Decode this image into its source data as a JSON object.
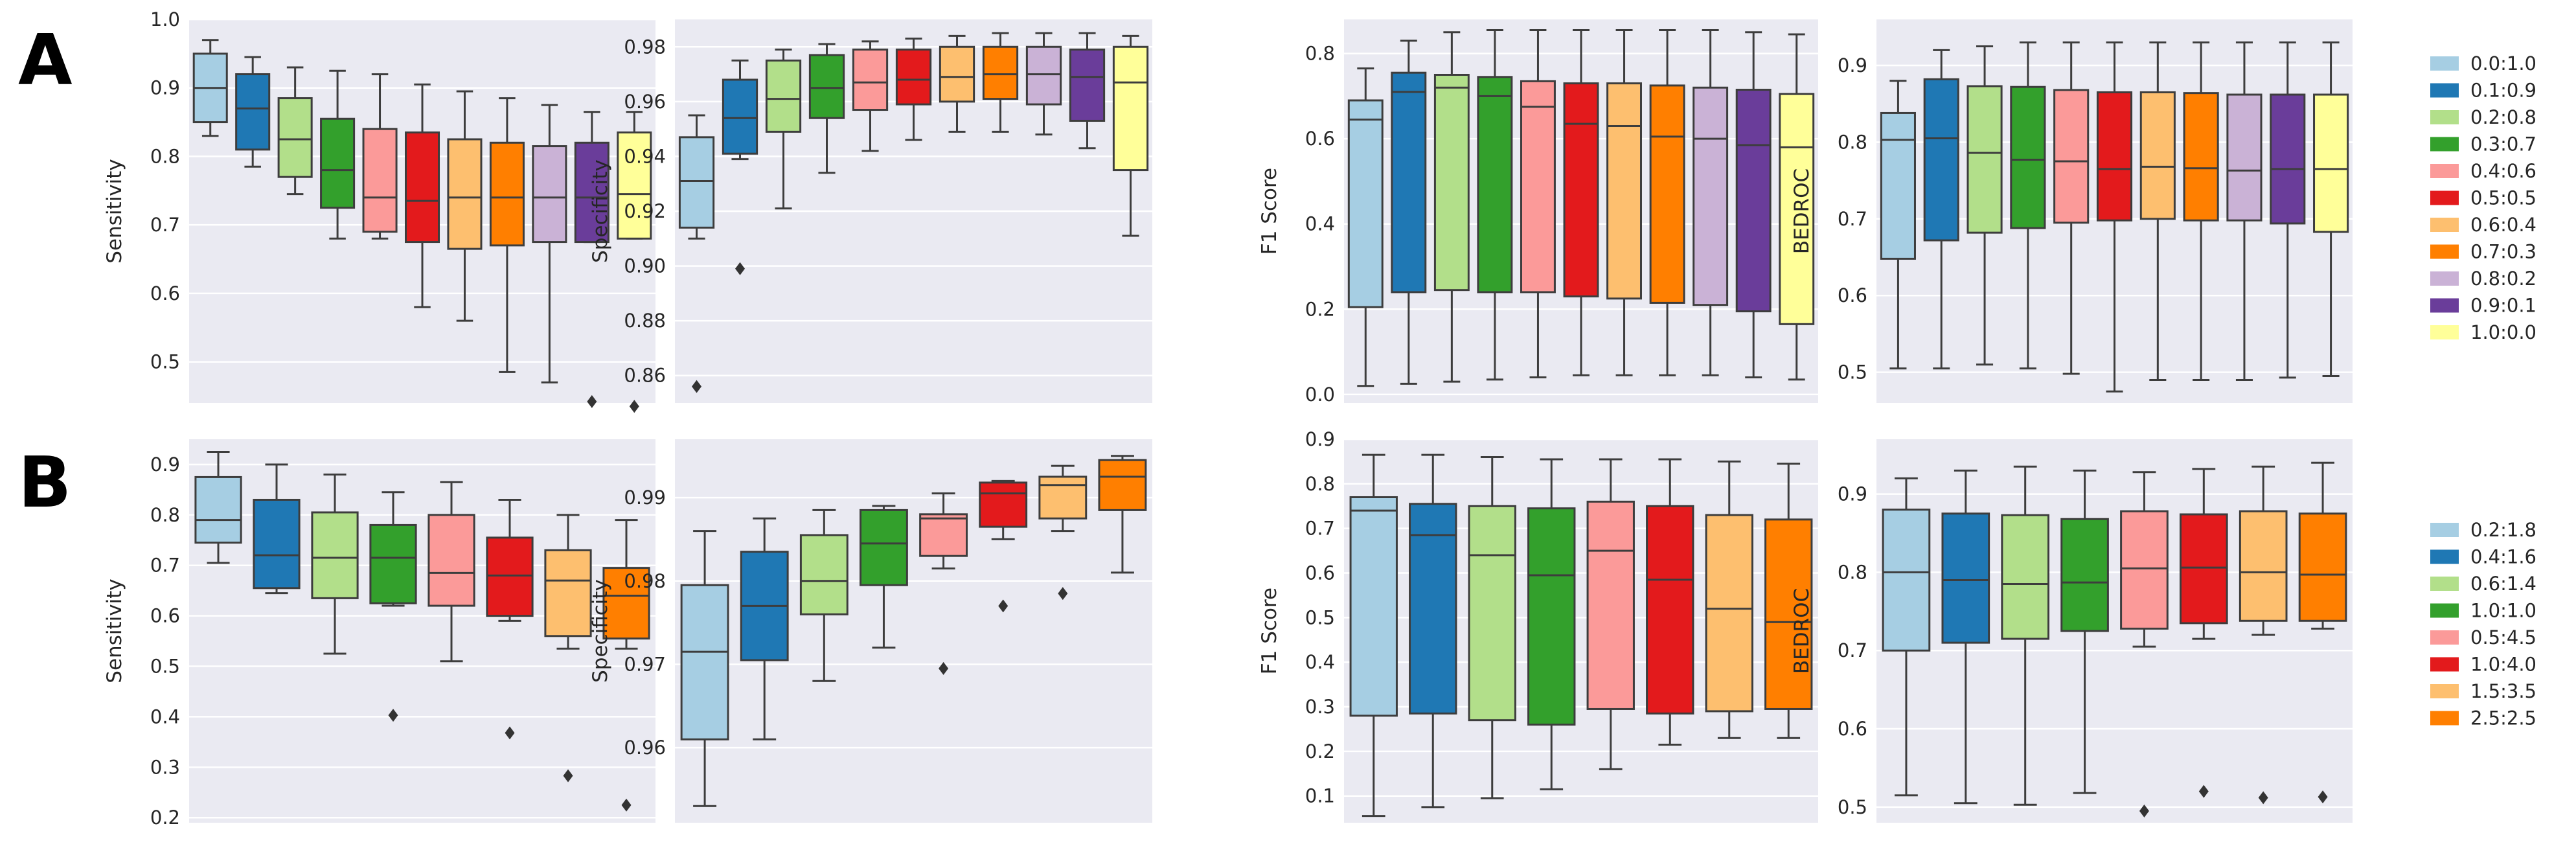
{
  "figure": {
    "panel_labels": [
      "A",
      "B"
    ]
  },
  "chart_data": [
    {
      "panel": "A",
      "type": "box",
      "ylabel": "Sensitivity",
      "ylim": [
        0.44,
        1.0
      ],
      "yticks": [
        0.5,
        0.6,
        0.7,
        0.8,
        0.9,
        1.0
      ],
      "ytick_labels": [
        "0.5",
        "0.6",
        "0.7",
        "0.8",
        "0.9",
        "1.0"
      ],
      "boxes": [
        {
          "min": 0.83,
          "q1": 0.85,
          "median": 0.9,
          "q3": 0.95,
          "max": 0.97,
          "outliers": []
        },
        {
          "min": 0.785,
          "q1": 0.81,
          "median": 0.87,
          "q3": 0.92,
          "max": 0.945,
          "outliers": []
        },
        {
          "min": 0.745,
          "q1": 0.77,
          "median": 0.825,
          "q3": 0.885,
          "max": 0.93,
          "outliers": []
        },
        {
          "min": 0.68,
          "q1": 0.725,
          "median": 0.78,
          "q3": 0.855,
          "max": 0.925,
          "outliers": []
        },
        {
          "min": 0.68,
          "q1": 0.69,
          "median": 0.74,
          "q3": 0.84,
          "max": 0.92,
          "outliers": []
        },
        {
          "min": 0.58,
          "q1": 0.675,
          "median": 0.735,
          "q3": 0.835,
          "max": 0.905,
          "outliers": []
        },
        {
          "min": 0.56,
          "q1": 0.665,
          "median": 0.74,
          "q3": 0.825,
          "max": 0.895,
          "outliers": []
        },
        {
          "min": 0.485,
          "q1": 0.67,
          "median": 0.74,
          "q3": 0.82,
          "max": 0.885,
          "outliers": []
        },
        {
          "min": 0.47,
          "q1": 0.675,
          "median": 0.74,
          "q3": 0.815,
          "max": 0.875,
          "outliers": []
        },
        {
          "min": 0.675,
          "q1": 0.675,
          "median": 0.74,
          "q3": 0.82,
          "max": 0.865,
          "outliers": [
            0.442
          ]
        },
        {
          "min": 0.68,
          "q1": 0.68,
          "median": 0.745,
          "q3": 0.835,
          "max": 0.865,
          "outliers": [
            0.435
          ]
        }
      ]
    },
    {
      "panel": "A",
      "type": "box",
      "ylabel": "Specificity",
      "ylim": [
        0.85,
        0.99
      ],
      "yticks": [
        0.86,
        0.88,
        0.9,
        0.92,
        0.94,
        0.96,
        0.98
      ],
      "ytick_labels": [
        "0.86",
        "0.88",
        "0.90",
        "0.92",
        "0.94",
        "0.96",
        "0.98"
      ],
      "boxes": [
        {
          "min": 0.91,
          "q1": 0.914,
          "median": 0.931,
          "q3": 0.947,
          "max": 0.955,
          "outliers": [
            0.856
          ]
        },
        {
          "min": 0.939,
          "q1": 0.941,
          "median": 0.954,
          "q3": 0.968,
          "max": 0.975,
          "outliers": [
            0.899
          ]
        },
        {
          "min": 0.921,
          "q1": 0.949,
          "median": 0.961,
          "q3": 0.975,
          "max": 0.979,
          "outliers": []
        },
        {
          "min": 0.934,
          "q1": 0.954,
          "median": 0.965,
          "q3": 0.977,
          "max": 0.981,
          "outliers": []
        },
        {
          "min": 0.942,
          "q1": 0.957,
          "median": 0.967,
          "q3": 0.979,
          "max": 0.982,
          "outliers": []
        },
        {
          "min": 0.946,
          "q1": 0.959,
          "median": 0.968,
          "q3": 0.979,
          "max": 0.983,
          "outliers": []
        },
        {
          "min": 0.949,
          "q1": 0.96,
          "median": 0.969,
          "q3": 0.98,
          "max": 0.984,
          "outliers": []
        },
        {
          "min": 0.949,
          "q1": 0.961,
          "median": 0.97,
          "q3": 0.98,
          "max": 0.985,
          "outliers": []
        },
        {
          "min": 0.948,
          "q1": 0.959,
          "median": 0.97,
          "q3": 0.98,
          "max": 0.985,
          "outliers": []
        },
        {
          "min": 0.943,
          "q1": 0.953,
          "median": 0.969,
          "q3": 0.979,
          "max": 0.985,
          "outliers": []
        },
        {
          "min": 0.911,
          "q1": 0.935,
          "median": 0.967,
          "q3": 0.98,
          "max": 0.984,
          "outliers": []
        }
      ]
    },
    {
      "panel": "A",
      "type": "box",
      "ylabel": "F1 Score",
      "ylim": [
        -0.02,
        0.88
      ],
      "yticks": [
        0.0,
        0.2,
        0.4,
        0.6,
        0.8
      ],
      "ytick_labels": [
        "0.0",
        "0.2",
        "0.4",
        "0.6",
        "0.8"
      ],
      "boxes": [
        {
          "min": 0.02,
          "q1": 0.205,
          "median": 0.645,
          "q3": 0.69,
          "max": 0.765,
          "outliers": []
        },
        {
          "min": 0.025,
          "q1": 0.24,
          "median": 0.71,
          "q3": 0.755,
          "max": 0.83,
          "outliers": []
        },
        {
          "min": 0.03,
          "q1": 0.245,
          "median": 0.72,
          "q3": 0.75,
          "max": 0.85,
          "outliers": []
        },
        {
          "min": 0.035,
          "q1": 0.24,
          "median": 0.7,
          "q3": 0.745,
          "max": 0.855,
          "outliers": []
        },
        {
          "min": 0.04,
          "q1": 0.24,
          "median": 0.675,
          "q3": 0.735,
          "max": 0.855,
          "outliers": []
        },
        {
          "min": 0.045,
          "q1": 0.23,
          "median": 0.635,
          "q3": 0.73,
          "max": 0.855,
          "outliers": []
        },
        {
          "min": 0.045,
          "q1": 0.225,
          "median": 0.63,
          "q3": 0.73,
          "max": 0.855,
          "outliers": []
        },
        {
          "min": 0.045,
          "q1": 0.215,
          "median": 0.605,
          "q3": 0.725,
          "max": 0.855,
          "outliers": []
        },
        {
          "min": 0.045,
          "q1": 0.21,
          "median": 0.6,
          "q3": 0.72,
          "max": 0.855,
          "outliers": []
        },
        {
          "min": 0.04,
          "q1": 0.195,
          "median": 0.585,
          "q3": 0.715,
          "max": 0.85,
          "outliers": []
        },
        {
          "min": 0.035,
          "q1": 0.165,
          "median": 0.58,
          "q3": 0.705,
          "max": 0.845,
          "outliers": []
        }
      ]
    },
    {
      "panel": "A",
      "type": "box",
      "ylabel": "BEDROC",
      "ylim": [
        0.46,
        0.96
      ],
      "yticks": [
        0.5,
        0.6,
        0.7,
        0.8,
        0.9
      ],
      "ytick_labels": [
        "0.5",
        "0.6",
        "0.7",
        "0.8",
        "0.9"
      ],
      "boxes": [
        {
          "min": 0.505,
          "q1": 0.648,
          "median": 0.803,
          "q3": 0.838,
          "max": 0.88,
          "outliers": []
        },
        {
          "min": 0.505,
          "q1": 0.672,
          "median": 0.805,
          "q3": 0.882,
          "max": 0.92,
          "outliers": []
        },
        {
          "min": 0.51,
          "q1": 0.682,
          "median": 0.786,
          "q3": 0.873,
          "max": 0.925,
          "outliers": []
        },
        {
          "min": 0.505,
          "q1": 0.688,
          "median": 0.777,
          "q3": 0.872,
          "max": 0.93,
          "outliers": []
        },
        {
          "min": 0.498,
          "q1": 0.695,
          "median": 0.775,
          "q3": 0.868,
          "max": 0.93,
          "outliers": []
        },
        {
          "min": 0.475,
          "q1": 0.698,
          "median": 0.765,
          "q3": 0.865,
          "max": 0.93,
          "outliers": []
        },
        {
          "min": 0.49,
          "q1": 0.7,
          "median": 0.768,
          "q3": 0.865,
          "max": 0.93,
          "outliers": []
        },
        {
          "min": 0.49,
          "q1": 0.698,
          "median": 0.766,
          "q3": 0.864,
          "max": 0.93,
          "outliers": []
        },
        {
          "min": 0.49,
          "q1": 0.698,
          "median": 0.763,
          "q3": 0.862,
          "max": 0.93,
          "outliers": []
        },
        {
          "min": 0.493,
          "q1": 0.694,
          "median": 0.765,
          "q3": 0.862,
          "max": 0.93,
          "outliers": []
        },
        {
          "min": 0.495,
          "q1": 0.683,
          "median": 0.765,
          "q3": 0.862,
          "max": 0.93,
          "outliers": []
        }
      ]
    },
    {
      "panel": "B",
      "type": "box",
      "ylabel": "Sensitivity",
      "ylim": [
        0.19,
        0.95
      ],
      "yticks": [
        0.2,
        0.3,
        0.4,
        0.5,
        0.6,
        0.7,
        0.8,
        0.9
      ],
      "ytick_labels": [
        "0.2",
        "0.3",
        "0.4",
        "0.5",
        "0.6",
        "0.7",
        "0.8",
        "0.9"
      ],
      "boxes": [
        {
          "min": 0.705,
          "q1": 0.745,
          "median": 0.79,
          "q3": 0.875,
          "max": 0.925,
          "outliers": []
        },
        {
          "min": 0.645,
          "q1": 0.655,
          "median": 0.72,
          "q3": 0.83,
          "max": 0.9,
          "outliers": []
        },
        {
          "min": 0.525,
          "q1": 0.635,
          "median": 0.715,
          "q3": 0.805,
          "max": 0.88,
          "outliers": []
        },
        {
          "min": 0.62,
          "q1": 0.625,
          "median": 0.715,
          "q3": 0.78,
          "max": 0.845,
          "outliers": [
            0.403
          ]
        },
        {
          "min": 0.51,
          "q1": 0.62,
          "median": 0.685,
          "q3": 0.8,
          "max": 0.865,
          "outliers": []
        },
        {
          "min": 0.59,
          "q1": 0.6,
          "median": 0.68,
          "q3": 0.755,
          "max": 0.83,
          "outliers": [
            0.368
          ]
        },
        {
          "min": 0.535,
          "q1": 0.56,
          "median": 0.67,
          "q3": 0.73,
          "max": 0.8,
          "outliers": [
            0.283
          ]
        },
        {
          "min": 0.535,
          "q1": 0.555,
          "median": 0.64,
          "q3": 0.695,
          "max": 0.79,
          "outliers": [
            0.225
          ]
        }
      ]
    },
    {
      "panel": "B",
      "type": "box",
      "ylabel": "Specificity",
      "ylim": [
        0.951,
        0.997
      ],
      "yticks": [
        0.96,
        0.97,
        0.98,
        0.99
      ],
      "ytick_labels": [
        "0.96",
        "0.97",
        "0.98",
        "0.99"
      ],
      "boxes": [
        {
          "min": 0.953,
          "q1": 0.961,
          "median": 0.9715,
          "q3": 0.9795,
          "max": 0.986,
          "outliers": []
        },
        {
          "min": 0.961,
          "q1": 0.9705,
          "median": 0.977,
          "q3": 0.9835,
          "max": 0.9875,
          "outliers": []
        },
        {
          "min": 0.968,
          "q1": 0.976,
          "median": 0.98,
          "q3": 0.9855,
          "max": 0.9885,
          "outliers": []
        },
        {
          "min": 0.972,
          "q1": 0.9795,
          "median": 0.9845,
          "q3": 0.9885,
          "max": 0.989,
          "outliers": []
        },
        {
          "min": 0.9815,
          "q1": 0.983,
          "median": 0.9875,
          "q3": 0.988,
          "max": 0.9905,
          "outliers": [
            0.9695
          ]
        },
        {
          "min": 0.985,
          "q1": 0.9865,
          "median": 0.9905,
          "q3": 0.9918,
          "max": 0.992,
          "outliers": [
            0.977
          ]
        },
        {
          "min": 0.986,
          "q1": 0.9875,
          "median": 0.9915,
          "q3": 0.9925,
          "max": 0.9938,
          "outliers": [
            0.9785
          ]
        },
        {
          "min": 0.981,
          "q1": 0.9885,
          "median": 0.9925,
          "q3": 0.9945,
          "max": 0.995,
          "outliers": []
        }
      ]
    },
    {
      "panel": "B",
      "type": "box",
      "ylabel": "F1 Score",
      "ylim": [
        0.04,
        0.9
      ],
      "yticks": [
        0.1,
        0.2,
        0.3,
        0.4,
        0.5,
        0.6,
        0.7,
        0.8,
        0.9
      ],
      "ytick_labels": [
        "0.1",
        "0.2",
        "0.3",
        "0.4",
        "0.5",
        "0.6",
        "0.7",
        "0.8",
        "0.9"
      ],
      "boxes": [
        {
          "min": 0.055,
          "q1": 0.28,
          "median": 0.74,
          "q3": 0.77,
          "max": 0.865,
          "outliers": []
        },
        {
          "min": 0.075,
          "q1": 0.285,
          "median": 0.685,
          "q3": 0.755,
          "max": 0.865,
          "outliers": []
        },
        {
          "min": 0.095,
          "q1": 0.27,
          "median": 0.64,
          "q3": 0.75,
          "max": 0.86,
          "outliers": []
        },
        {
          "min": 0.115,
          "q1": 0.26,
          "median": 0.595,
          "q3": 0.745,
          "max": 0.855,
          "outliers": []
        },
        {
          "min": 0.16,
          "q1": 0.295,
          "median": 0.65,
          "q3": 0.76,
          "max": 0.855,
          "outliers": []
        },
        {
          "min": 0.215,
          "q1": 0.285,
          "median": 0.585,
          "q3": 0.75,
          "max": 0.855,
          "outliers": []
        },
        {
          "min": 0.23,
          "q1": 0.29,
          "median": 0.52,
          "q3": 0.73,
          "max": 0.85,
          "outliers": []
        },
        {
          "min": 0.23,
          "q1": 0.295,
          "median": 0.49,
          "q3": 0.72,
          "max": 0.845,
          "outliers": []
        }
      ]
    },
    {
      "panel": "B",
      "type": "box",
      "ylabel": "BEDROC",
      "ylim": [
        0.48,
        0.97
      ],
      "yticks": [
        0.5,
        0.6,
        0.7,
        0.8,
        0.9
      ],
      "ytick_labels": [
        "0.5",
        "0.6",
        "0.7",
        "0.8",
        "0.9"
      ],
      "boxes": [
        {
          "min": 0.515,
          "q1": 0.7,
          "median": 0.8,
          "q3": 0.88,
          "max": 0.92,
          "outliers": []
        },
        {
          "min": 0.505,
          "q1": 0.71,
          "median": 0.79,
          "q3": 0.875,
          "max": 0.93,
          "outliers": []
        },
        {
          "min": 0.503,
          "q1": 0.715,
          "median": 0.785,
          "q3": 0.873,
          "max": 0.935,
          "outliers": []
        },
        {
          "min": 0.518,
          "q1": 0.725,
          "median": 0.787,
          "q3": 0.868,
          "max": 0.93,
          "outliers": []
        },
        {
          "min": 0.705,
          "q1": 0.728,
          "median": 0.805,
          "q3": 0.878,
          "max": 0.928,
          "outliers": [
            0.495
          ]
        },
        {
          "min": 0.715,
          "q1": 0.735,
          "median": 0.806,
          "q3": 0.874,
          "max": 0.932,
          "outliers": [
            0.52
          ]
        },
        {
          "min": 0.72,
          "q1": 0.738,
          "median": 0.8,
          "q3": 0.878,
          "max": 0.935,
          "outliers": [
            0.512
          ]
        },
        {
          "min": 0.728,
          "q1": 0.738,
          "median": 0.797,
          "q3": 0.875,
          "max": 0.94,
          "outliers": [
            0.513
          ]
        }
      ]
    }
  ],
  "legends": {
    "A": {
      "labels": [
        "0.0:1.0",
        "0.1:0.9",
        "0.2:0.8",
        "0.3:0.7",
        "0.4:0.6",
        "0.5:0.5",
        "0.6:0.4",
        "0.7:0.3",
        "0.8:0.2",
        "0.9:0.1",
        "1.0:0.0"
      ],
      "colors": [
        "#a6cee3",
        "#1f78b4",
        "#b2df8a",
        "#33a02c",
        "#fb9a99",
        "#e31a1c",
        "#fdbf6f",
        "#ff7f00",
        "#cab2d6",
        "#6a3d9a",
        "#ffff99"
      ]
    },
    "B": {
      "labels": [
        "0.2:1.8",
        "0.4:1.6",
        "0.6:1.4",
        "1.0:1.0",
        "0.5:4.5",
        "1.0:4.0",
        "1.5:3.5",
        "2.5:2.5"
      ],
      "colors": [
        "#a6cee3",
        "#1f78b4",
        "#b2df8a",
        "#33a02c",
        "#fb9a99",
        "#e31a1c",
        "#fdbf6f",
        "#ff7f00"
      ]
    }
  },
  "style": {
    "panel_bg": "#eaeaf2",
    "grid": "#ffffff",
    "box_edge": "#3d3d3d",
    "text": "#262626"
  }
}
